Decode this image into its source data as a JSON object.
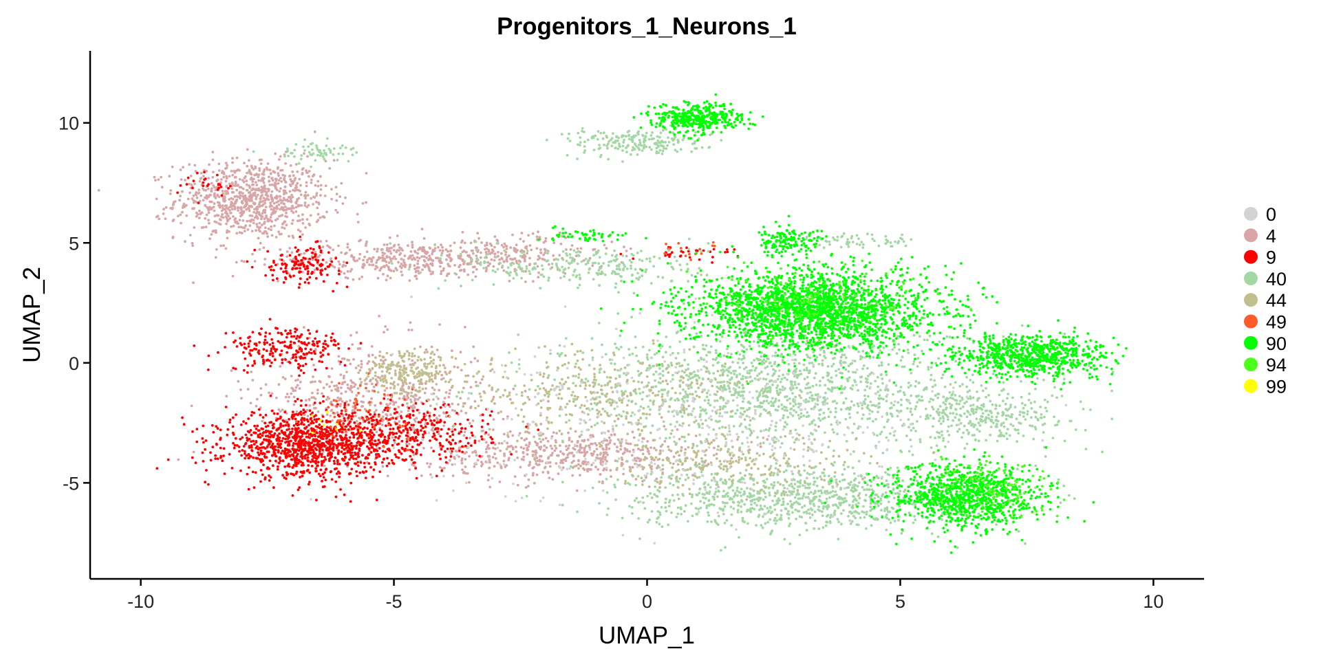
{
  "chart_data": {
    "type": "scatter",
    "title": "Progenitors_1_Neurons_1",
    "xlabel": "UMAP_1",
    "ylabel": "UMAP_2",
    "xlim": [
      -11,
      11
    ],
    "ylim": [
      -9,
      13
    ],
    "xticks": [
      -10,
      -5,
      0,
      5,
      10
    ],
    "yticks": [
      -5,
      0,
      5,
      10
    ],
    "grid": false,
    "legend_position": "right",
    "legend": [
      {
        "label": "0",
        "color": "#d3d3d3"
      },
      {
        "label": "4",
        "color": "#d8a6a6"
      },
      {
        "label": "9",
        "color": "#ff0000"
      },
      {
        "label": "40",
        "color": "#a3d7a3"
      },
      {
        "label": "44",
        "color": "#c2bf8f"
      },
      {
        "label": "49",
        "color": "#ff5a2a"
      },
      {
        "label": "90",
        "color": "#00ff00"
      },
      {
        "label": "94",
        "color": "#4cff1a"
      },
      {
        "label": "99",
        "color": "#ffff00"
      }
    ],
    "clusters": [
      {
        "group": "4",
        "cx": -7.8,
        "cy": 6.8,
        "sx": 1.0,
        "sy": 1.1,
        "n": 900
      },
      {
        "group": "4",
        "cx": -5.0,
        "cy": 4.3,
        "sx": 1.5,
        "sy": 0.5,
        "n": 350
      },
      {
        "group": "4",
        "cx": -5.4,
        "cy": -1.5,
        "sx": 1.6,
        "sy": 1.6,
        "n": 600
      },
      {
        "group": "4",
        "cx": -1.5,
        "cy": -3.8,
        "sx": 1.8,
        "sy": 0.7,
        "n": 500
      },
      {
        "group": "4",
        "cx": -2.8,
        "cy": 4.5,
        "sx": 1.4,
        "sy": 0.6,
        "n": 250
      },
      {
        "group": "9",
        "cx": -6.7,
        "cy": -3.4,
        "sx": 1.1,
        "sy": 0.9,
        "n": 1100
      },
      {
        "group": "9",
        "cx": -4.6,
        "cy": -3.0,
        "sx": 1.0,
        "sy": 0.8,
        "n": 300
      },
      {
        "group": "9",
        "cx": -7.1,
        "cy": 0.6,
        "sx": 0.8,
        "sy": 0.6,
        "n": 220
      },
      {
        "group": "9",
        "cx": -6.8,
        "cy": 4.1,
        "sx": 0.5,
        "sy": 0.5,
        "n": 140
      },
      {
        "group": "9",
        "cx": -8.6,
        "cy": 7.5,
        "sx": 0.4,
        "sy": 0.4,
        "n": 25
      },
      {
        "group": "9",
        "cx": 0.9,
        "cy": 4.6,
        "sx": 0.8,
        "sy": 0.2,
        "n": 30
      },
      {
        "group": "49",
        "cx": -5.6,
        "cy": -2.0,
        "sx": 0.6,
        "sy": 0.8,
        "n": 60
      },
      {
        "group": "49",
        "cx": 0.8,
        "cy": 4.7,
        "sx": 0.6,
        "sy": 0.2,
        "n": 15
      },
      {
        "group": "40",
        "cx": -0.2,
        "cy": 9.2,
        "sx": 0.9,
        "sy": 0.4,
        "n": 200
      },
      {
        "group": "40",
        "cx": -6.6,
        "cy": 8.8,
        "sx": 0.5,
        "sy": 0.3,
        "n": 60
      },
      {
        "group": "40",
        "cx": -1.2,
        "cy": 4.0,
        "sx": 1.6,
        "sy": 0.6,
        "n": 250
      },
      {
        "group": "40",
        "cx": 2.5,
        "cy": -1.0,
        "sx": 2.8,
        "sy": 1.6,
        "n": 1300
      },
      {
        "group": "40",
        "cx": 3.0,
        "cy": -5.6,
        "sx": 2.2,
        "sy": 0.9,
        "n": 900
      },
      {
        "group": "40",
        "cx": 6.8,
        "cy": -2.2,
        "sx": 1.2,
        "sy": 0.8,
        "n": 300
      },
      {
        "group": "40",
        "cx": 4.2,
        "cy": 5.1,
        "sx": 0.8,
        "sy": 0.2,
        "n": 60
      },
      {
        "group": "44",
        "cx": -4.7,
        "cy": -0.4,
        "sx": 0.6,
        "sy": 0.6,
        "n": 220
      },
      {
        "group": "44",
        "cx": -1.0,
        "cy": -1.3,
        "sx": 2.0,
        "sy": 1.2,
        "n": 350
      },
      {
        "group": "44",
        "cx": 1.5,
        "cy": -4.2,
        "sx": 1.8,
        "sy": 0.8,
        "n": 250
      },
      {
        "group": "0",
        "cx": 1.0,
        "cy": -2.5,
        "sx": 3.5,
        "sy": 2.2,
        "n": 450
      },
      {
        "group": "90",
        "cx": 1.0,
        "cy": 10.2,
        "sx": 0.6,
        "sy": 0.4,
        "n": 380
      },
      {
        "group": "90",
        "cx": 3.3,
        "cy": 2.2,
        "sx": 1.6,
        "sy": 1.1,
        "n": 2200
      },
      {
        "group": "90",
        "cx": 7.6,
        "cy": 0.3,
        "sx": 1.0,
        "sy": 0.6,
        "n": 750
      },
      {
        "group": "90",
        "cx": 6.3,
        "cy": -5.6,
        "sx": 1.0,
        "sy": 0.9,
        "n": 950
      },
      {
        "group": "90",
        "cx": 2.8,
        "cy": 5.1,
        "sx": 0.5,
        "sy": 0.4,
        "n": 150
      },
      {
        "group": "90",
        "cx": -1.2,
        "cy": 5.3,
        "sx": 0.6,
        "sy": 0.2,
        "n": 50
      },
      {
        "group": "94",
        "cx": 6.8,
        "cy": -5.2,
        "sx": 0.8,
        "sy": 0.8,
        "n": 120
      },
      {
        "group": "94",
        "cx": 3.5,
        "cy": 2.5,
        "sx": 1.5,
        "sy": 1.0,
        "n": 150
      },
      {
        "group": "99",
        "cx": -6.2,
        "cy": -2.5,
        "sx": 0.4,
        "sy": 0.4,
        "n": 8
      }
    ]
  }
}
